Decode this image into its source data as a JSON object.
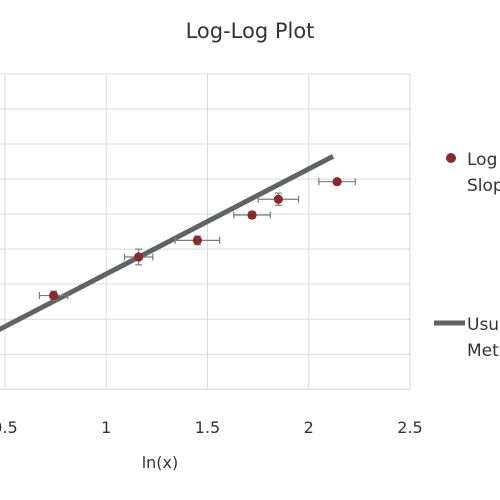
{
  "chart_data": {
    "type": "scatter",
    "title": "Log-Log Plot",
    "xlabel": "ln(x)",
    "ylabel": "",
    "xlim": [
      0.5,
      2.5
    ],
    "ylim": [
      -0.9,
      2.8
    ],
    "x_ticks": [
      {
        "value": 0.5,
        "label": "0.5"
      },
      {
        "value": 1,
        "label": "1"
      },
      {
        "value": 1.5,
        "label": "1.5"
      },
      {
        "value": 2,
        "label": "2"
      },
      {
        "value": 2.5,
        "label": "2.5"
      }
    ],
    "y_gridlines": [
      -0.8,
      -0.4,
      0,
      0.4,
      0.8,
      1.2,
      1.6,
      2.0,
      2.4,
      2.8
    ],
    "grid": true,
    "legend_position": "right",
    "series": [
      {
        "name_lines": [
          "Log",
          "Slop"
        ],
        "kind": "points-with-error-bars",
        "color": "#8b2a2a",
        "points": [
          {
            "x": 0.74,
            "y": 0.27,
            "xerr": 0.07,
            "yerr": 0.05
          },
          {
            "x": 1.16,
            "y": 0.71,
            "xerr": 0.07,
            "yerr": 0.09
          },
          {
            "x": 1.45,
            "y": 0.9,
            "xerr": 0.11,
            "yerr": 0.05
          },
          {
            "x": 1.72,
            "y": 1.19,
            "xerr": 0.09,
            "yerr": 0.04
          },
          {
            "x": 1.85,
            "y": 1.37,
            "xerr": 0.1,
            "yerr": 0.07
          },
          {
            "x": 2.14,
            "y": 1.57,
            "xerr": 0.09,
            "yerr": 0.03
          }
        ]
      },
      {
        "name_lines": [
          "Usu",
          "Met"
        ],
        "kind": "line",
        "color": "#5f6366",
        "x": [
          0.47,
          2.12
        ],
        "y": [
          -0.12,
          1.86
        ]
      }
    ]
  }
}
